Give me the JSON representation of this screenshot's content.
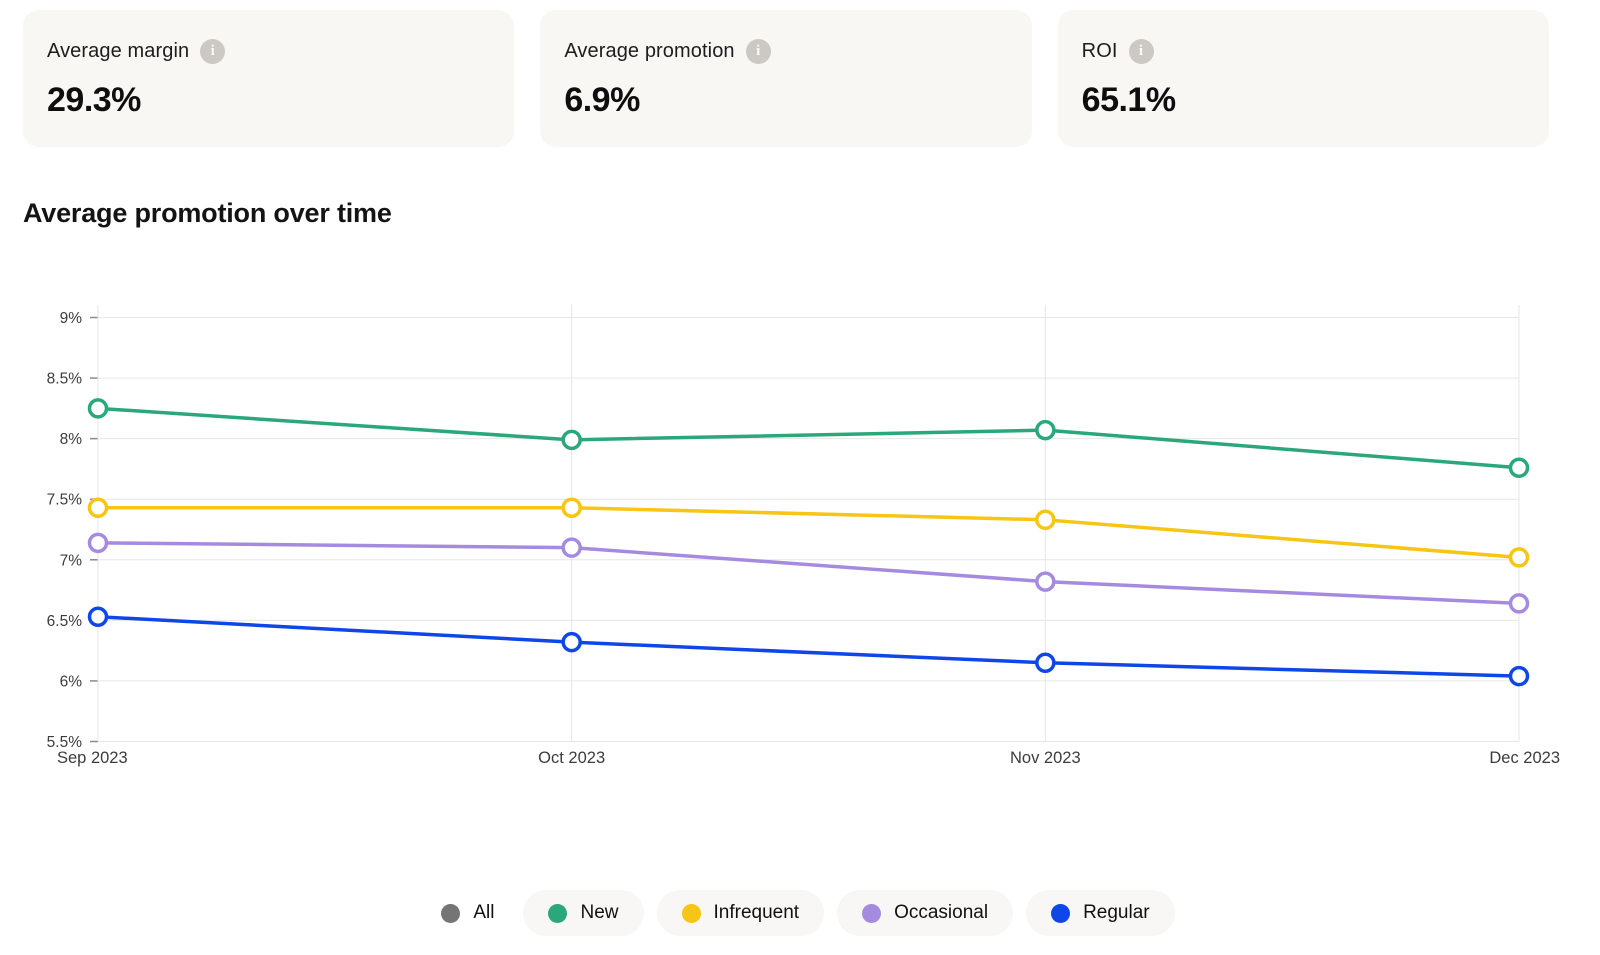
{
  "kpi_cards": [
    {
      "label": "Average margin",
      "value": "29.3%",
      "info_icon": "i"
    },
    {
      "label": "Average promotion",
      "value": "6.9%",
      "info_icon": "i"
    },
    {
      "label": "ROI",
      "value": "65.1%",
      "info_icon": "i"
    }
  ],
  "chart": {
    "title": "Average promotion over time"
  },
  "chart_data": {
    "type": "line",
    "title": "Average promotion over time",
    "x": [
      "Sep 2023",
      "Oct 2023",
      "Nov 2023",
      "Dec 2023"
    ],
    "series": [
      {
        "name": "New",
        "color": "#2aa87a",
        "values": [
          8.25,
          7.99,
          8.07,
          7.76
        ]
      },
      {
        "name": "Infrequent",
        "color": "#f7c513",
        "values": [
          7.43,
          7.43,
          7.33,
          7.02
        ]
      },
      {
        "name": "Occasional",
        "color": "#a58be0",
        "values": [
          7.14,
          7.1,
          6.82,
          6.64
        ]
      },
      {
        "name": "Regular",
        "color": "#0f46e8",
        "values": [
          6.53,
          6.32,
          6.15,
          6.04
        ]
      }
    ],
    "ylim": [
      5.5,
      9
    ],
    "ytick_step": 0.5,
    "ytick_labels": [
      "9%",
      "8.5%",
      "8%",
      "7.5%",
      "7%",
      "6.5%",
      "6%",
      "5.5%"
    ],
    "grid": true,
    "marker": "open-circle",
    "legend_position": "bottom",
    "grid_color": "#e7e6e3",
    "tick_color": "#8a8a8a",
    "axis_label_color": "#3c3c3c"
  },
  "legend": {
    "items": [
      {
        "label": "All",
        "color": "#757575",
        "active": false
      },
      {
        "label": "New",
        "color": "#2aa87a",
        "active": true
      },
      {
        "label": "Infrequent",
        "color": "#f7c513",
        "active": true
      },
      {
        "label": "Occasional",
        "color": "#a58be0",
        "active": true
      },
      {
        "label": "Regular",
        "color": "#0f46e8",
        "active": true
      }
    ]
  }
}
